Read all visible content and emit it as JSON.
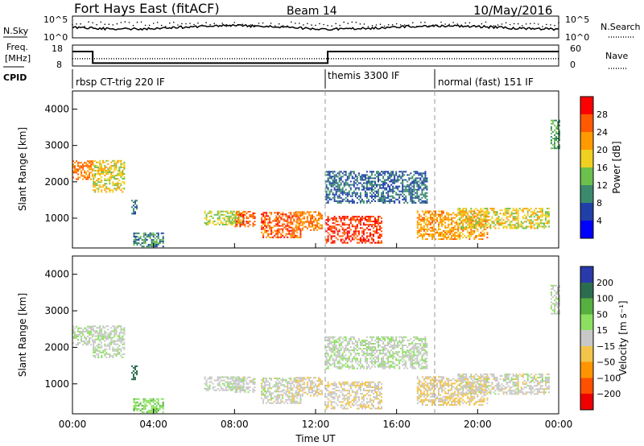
{
  "header": {
    "station": "Fort Hays East (fitACF)",
    "beam": "Beam 14",
    "date": "10/May/2016"
  },
  "noise_panel": {
    "left_label": "N.Sky",
    "right_label": "N.Search",
    "ticks": [
      "10^5",
      "10^0"
    ]
  },
  "freq_panel": {
    "left_label_1": "Freq.",
    "left_label_2": "[MHz]",
    "right_label": "Nave",
    "left_ticks": [
      "18",
      "8"
    ],
    "right_ticks": [
      "60",
      "0"
    ]
  },
  "cpid_panel": {
    "label": "CPID",
    "modes": [
      "rbsp CT-trig 220 IF",
      "themis 3300 IF",
      "normal (fast) 151 IF"
    ]
  },
  "axes": {
    "ylabel": "Slant Range [km]",
    "xlabel": "Time UT",
    "x_ticks": [
      "00:00",
      "04:00",
      "08:00",
      "12:00",
      "16:00",
      "20:00",
      "00:00"
    ],
    "y_ticks": [
      "1000",
      "2000",
      "3000",
      "4000"
    ]
  },
  "colorbars": {
    "power": {
      "label": "Power [dB]",
      "ticks": [
        "4",
        "8",
        "12",
        "16",
        "20",
        "24",
        "28"
      ],
      "colors": [
        "#0000ff",
        "#2040a8",
        "#3b8a6e",
        "#6cc04c",
        "#f0d020",
        "#ff9a00",
        "#ff5a00",
        "#ff0000"
      ]
    },
    "velocity": {
      "label": "Velocity [m s⁻¹]",
      "ticks": [
        "200",
        "100",
        "50",
        "15",
        "−15",
        "−50",
        "−100",
        "−200"
      ],
      "colors": [
        "#2a3aaa",
        "#2d6d4f",
        "#55b040",
        "#8ce060",
        "#c8c8c8",
        "#f2c44a",
        "#ff9500",
        "#ff5000",
        "#ee0000"
      ]
    }
  },
  "chart_data": {
    "type": "heatmap",
    "x_range_hours": [
      0,
      24
    ],
    "y_range_km": [
      180,
      4500
    ],
    "mode_change_times": [
      "00:00",
      "12:40",
      "18:00"
    ],
    "scatter_regions": [
      {
        "t0": 0.0,
        "t1": 1.0,
        "r0": 2050,
        "r1": 2550,
        "power": 24,
        "velocity": 10
      },
      {
        "t0": 1.0,
        "t1": 2.6,
        "r0": 1700,
        "r1": 2600,
        "power": 18,
        "velocity": 5
      },
      {
        "t0": 2.9,
        "t1": 3.2,
        "r0": 1100,
        "r1": 1500,
        "power": 8,
        "velocity": 150
      },
      {
        "t0": 3.0,
        "t1": 4.5,
        "r0": 200,
        "r1": 600,
        "power": 10,
        "velocity": 40
      },
      {
        "t0": 6.5,
        "t1": 8.5,
        "r0": 800,
        "r1": 1200,
        "power": 16,
        "velocity": 5
      },
      {
        "t0": 8.0,
        "t1": 9.0,
        "r0": 750,
        "r1": 1200,
        "power": 26,
        "velocity": 0
      },
      {
        "t0": 9.3,
        "t1": 11.3,
        "r0": 450,
        "r1": 1150,
        "power": 26,
        "velocity": 0
      },
      {
        "t0": 11.0,
        "t1": 12.3,
        "r0": 650,
        "r1": 1150,
        "power": 24,
        "velocity": -10
      },
      {
        "t0": 12.5,
        "t1": 15.3,
        "r0": 300,
        "r1": 1050,
        "power": 28,
        "velocity": -10
      },
      {
        "t0": 12.5,
        "t1": 17.5,
        "r0": 1400,
        "r1": 2300,
        "power": 8,
        "velocity": 10
      },
      {
        "t0": 17.0,
        "t1": 20.5,
        "r0": 400,
        "r1": 1200,
        "power": 22,
        "velocity": -20
      },
      {
        "t0": 19.0,
        "t1": 23.5,
        "r0": 700,
        "r1": 1250,
        "power": 18,
        "velocity": 0
      },
      {
        "t0": 23.6,
        "t1": 24.0,
        "r0": 2900,
        "r1": 3700,
        "power": 12,
        "velocity": 5
      }
    ],
    "frequency_mhz": {
      "before": 18,
      "after": 10
    },
    "nave": {
      "before": 25,
      "after": 55
    }
  }
}
